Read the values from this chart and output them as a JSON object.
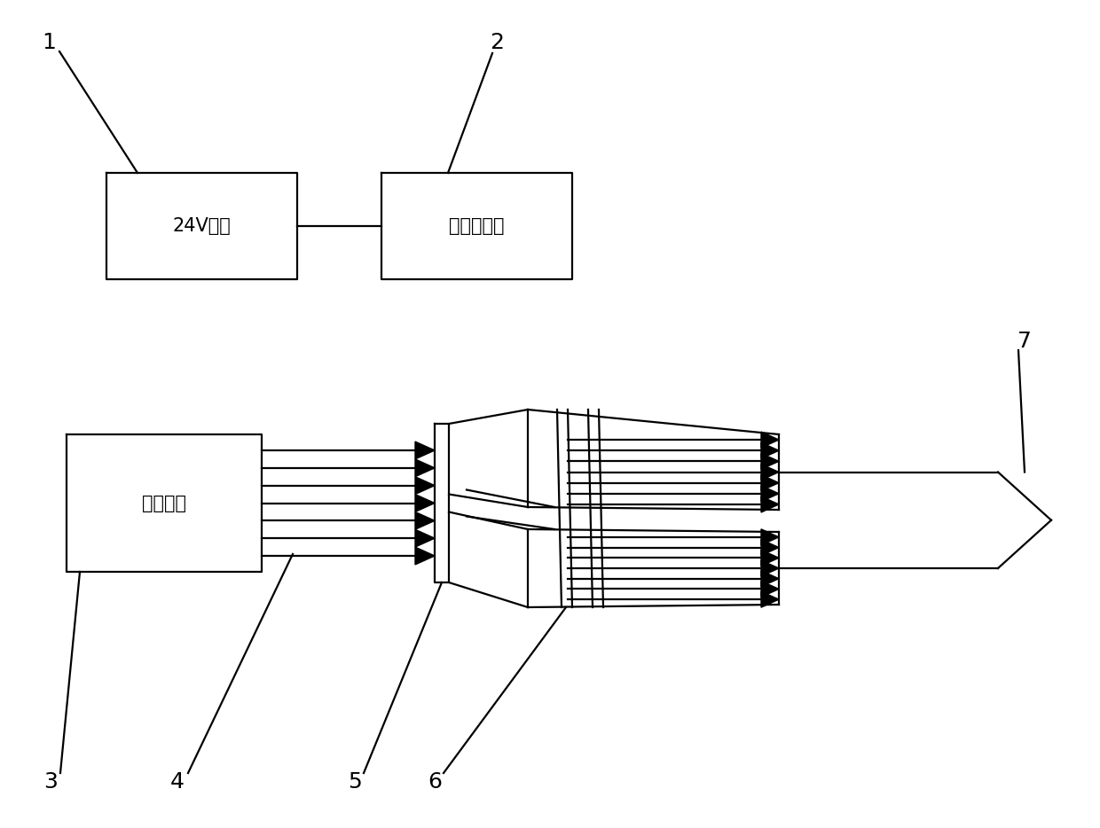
{
  "bg_color": "#ffffff",
  "line_color": "#000000",
  "box1_label": "24V电源",
  "box2_label": "风扇控制器",
  "box3_label": "供风系统",
  "label1": "1",
  "label2": "2",
  "label3": "3",
  "label4": "4",
  "label5": "5",
  "label6": "6",
  "label7": "7",
  "font_size_box": 15,
  "font_size_label": 18,
  "lw": 1.6
}
